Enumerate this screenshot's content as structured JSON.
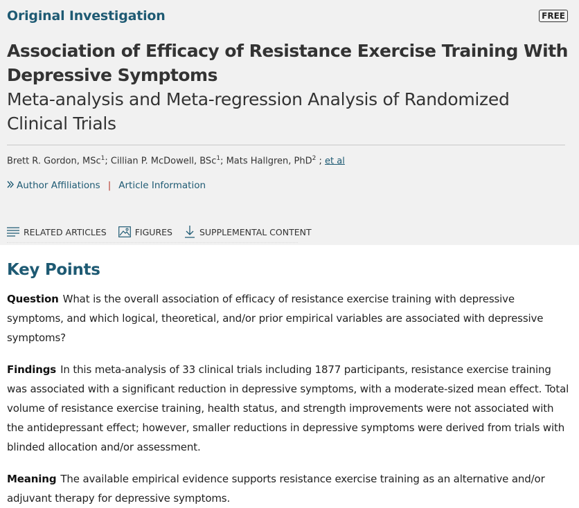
{
  "header": {
    "article_type": "Original Investigation",
    "badge": "FREE",
    "title": "Association of Efficacy of Resistance Exercise Training With Depressive Symptoms",
    "subtitle": "Meta-analysis and Meta-regression Analysis of Randomized Clinical Trials",
    "authors": [
      {
        "name": "Brett R. Gordon, MSc",
        "sup": "1",
        "sep": "; "
      },
      {
        "name": "Cillian P. McDowell, BSc",
        "sup": "1",
        "sep": "; "
      },
      {
        "name": "Mats Hallgren, PhD",
        "sup": "2",
        "sep": " ; "
      }
    ],
    "et_al": "et al",
    "links": {
      "affiliations": "Author Affiliations",
      "separator": "|",
      "article_info": "Article Information"
    },
    "tabs": {
      "related": "RELATED ARTICLES",
      "figures": "FIGURES",
      "supplemental": "SUPPLEMENTAL CONTENT"
    }
  },
  "key_points": {
    "heading": "Key Points",
    "question": {
      "label": "Question",
      "text": "What is the overall association of efficacy of resistance exercise training with depressive symptoms, and which logical, theoretical, and/or prior empirical variables are associated with depressive symptoms?"
    },
    "findings": {
      "label": "Findings",
      "text": "In this meta-analysis of 33 clinical trials including 1877 participants, resistance exercise training was associated with a significant reduction in depressive symptoms, with a moderate-sized mean effect. Total volume of resistance exercise training, health status, and strength improvements were not associated with the antidepressant effect; however, smaller reductions in depressive symptoms were derived from trials with blinded allocation and/or assessment."
    },
    "meaning": {
      "label": "Meaning",
      "text": "The available empirical evidence supports resistance exercise training as an alternative and/or adjuvant therapy for depressive symptoms."
    }
  }
}
